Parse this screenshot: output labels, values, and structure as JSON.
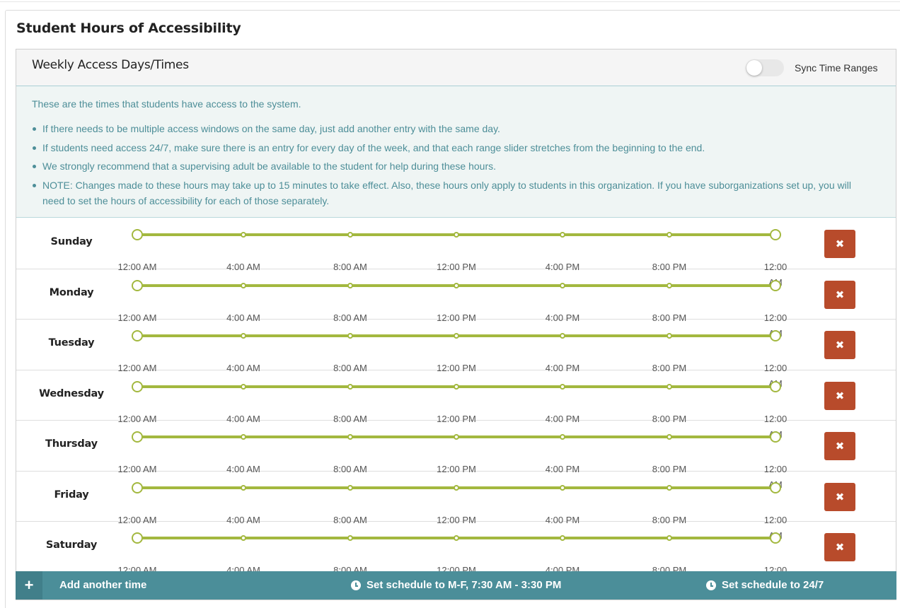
{
  "page": {
    "title": "Student Hours of Accessibility"
  },
  "panel": {
    "title": "Weekly Access Days/Times",
    "sync_toggle": {
      "label": "Sync Time Ranges",
      "on": false
    }
  },
  "info": {
    "lead": "These are the times that students have access to the system.",
    "bullets": [
      "If there needs to be multiple access windows on the same day, just add another entry with the same day.",
      "If students need access 24/7, make sure there is an entry for every day of the week, and that each range slider stretches from the beginning to the end.",
      "We strongly recommend that a supervising adult be available to the student for help during these hours.",
      "NOTE: Changes made to these hours may take up to 15 minutes to take effect. Also, these hours only apply to students in this organization. If you have suborganizations set up, you will need to set the hours of accessibility for each of those separately."
    ]
  },
  "tick_labels": [
    "12:00 AM",
    "4:00 AM",
    "8:00 AM",
    "12:00 PM",
    "4:00 PM",
    "8:00 PM",
    "12:00 AM"
  ],
  "days": [
    {
      "label": "Sunday",
      "range_start": 0,
      "range_end": 1
    },
    {
      "label": "Monday",
      "range_start": 0,
      "range_end": 1
    },
    {
      "label": "Tuesday",
      "range_start": 0,
      "range_end": 1
    },
    {
      "label": "Wednesday",
      "range_start": 0,
      "range_end": 1
    },
    {
      "label": "Thursday",
      "range_start": 0,
      "range_end": 1
    },
    {
      "label": "Friday",
      "range_start": 0,
      "range_end": 1
    },
    {
      "label": "Saturday",
      "range_start": 0,
      "range_end": 1
    }
  ],
  "delete_icon": "times-icon",
  "footer": {
    "add_icon": "plus-icon",
    "add_label": "Add another time",
    "schedule_mf_label": "Set schedule to M-F, 7:30 AM - 3:30 PM",
    "schedule_247_label": "Set schedule to 24/7",
    "schedule_icon": "clock-icon"
  },
  "colors": {
    "slider": "#a3b83f",
    "delete_button": "#b84b2b",
    "footer": "#4b8e99",
    "info_text": "#4d8e98",
    "info_bg": "#eff5f4"
  }
}
